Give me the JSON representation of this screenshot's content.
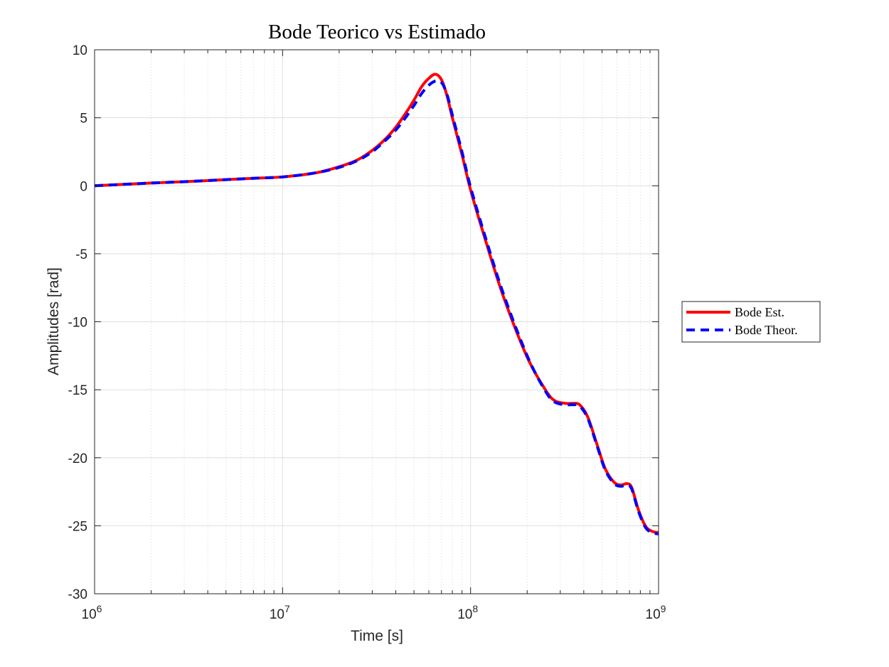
{
  "chart_data": {
    "type": "line",
    "title": "Bode Teorico vs Estimado",
    "xlabel": "Time [s]",
    "ylabel": "Amplitudes [rad]",
    "xscale": "log",
    "xlim": [
      1000000,
      1000000000
    ],
    "ylim": [
      -30,
      10
    ],
    "grid": true,
    "legend_position": "outside-right",
    "x_tick_labels": [
      {
        "value": 1000000,
        "base": "10",
        "exp": "6"
      },
      {
        "value": 10000000,
        "base": "10",
        "exp": "7"
      },
      {
        "value": 100000000,
        "base": "10",
        "exp": "8"
      },
      {
        "value": 1000000000,
        "base": "10",
        "exp": "9"
      }
    ],
    "y_ticks": [
      10,
      5,
      0,
      -5,
      -10,
      -15,
      -20,
      -25,
      -30
    ],
    "series": [
      {
        "name": "Bode Est.",
        "color": "#ff0000",
        "style": "solid",
        "x": [
          1000000,
          2000000,
          3000000,
          5000000,
          7000000,
          10000000,
          15000000,
          20000000,
          25000000,
          30000000,
          35000000,
          40000000,
          45000000,
          50000000,
          55000000,
          60000000,
          65000000,
          70000000,
          75000000,
          80000000,
          90000000,
          100000000,
          120000000,
          150000000,
          200000000,
          250000000,
          280000000,
          320000000,
          350000000,
          380000000,
          420000000,
          470000000,
          520000000,
          580000000,
          630000000,
          680000000,
          720000000,
          780000000,
          850000000,
          920000000,
          1000000000
        ],
        "y": [
          0.0,
          0.2,
          0.3,
          0.45,
          0.55,
          0.65,
          0.95,
          1.4,
          1.9,
          2.6,
          3.4,
          4.3,
          5.3,
          6.3,
          7.3,
          7.9,
          8.2,
          7.8,
          6.6,
          5.0,
          2.3,
          -0.3,
          -4.0,
          -8.2,
          -12.6,
          -15.0,
          -15.8,
          -16.0,
          -16.0,
          -16.1,
          -17.0,
          -19.0,
          -20.8,
          -21.8,
          -22.0,
          -21.9,
          -22.2,
          -23.8,
          -25.0,
          -25.4,
          -25.5
        ]
      },
      {
        "name": "Bode Theor.",
        "color": "#0000ff",
        "style": "dashed",
        "x": [
          1000000,
          2000000,
          3000000,
          5000000,
          7000000,
          10000000,
          15000000,
          20000000,
          25000000,
          30000000,
          35000000,
          40000000,
          45000000,
          50000000,
          55000000,
          60000000,
          65000000,
          70000000,
          75000000,
          80000000,
          90000000,
          100000000,
          120000000,
          150000000,
          200000000,
          250000000,
          280000000,
          320000000,
          350000000,
          380000000,
          420000000,
          470000000,
          520000000,
          580000000,
          630000000,
          680000000,
          720000000,
          780000000,
          850000000,
          920000000,
          1000000000
        ],
        "y": [
          0.0,
          0.2,
          0.3,
          0.45,
          0.55,
          0.65,
          0.95,
          1.35,
          1.85,
          2.5,
          3.3,
          4.1,
          5.0,
          5.9,
          6.8,
          7.4,
          7.7,
          7.6,
          6.7,
          5.2,
          2.5,
          -0.1,
          -3.8,
          -8.0,
          -12.5,
          -15.1,
          -15.9,
          -16.1,
          -16.1,
          -16.2,
          -17.1,
          -19.1,
          -20.9,
          -21.9,
          -22.1,
          -22.0,
          -22.3,
          -23.9,
          -25.1,
          -25.5,
          -25.6
        ]
      }
    ]
  }
}
